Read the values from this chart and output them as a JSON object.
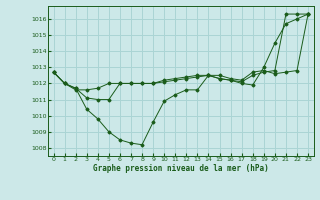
{
  "xlabel": "Graphe pression niveau de la mer (hPa)",
  "bg_color": "#cce8e8",
  "grid_color": "#aad4d4",
  "line_color": "#1a5c1a",
  "ylim": [
    1007.5,
    1016.8
  ],
  "xlim": [
    -0.5,
    23.5
  ],
  "yticks": [
    1008,
    1009,
    1010,
    1011,
    1012,
    1013,
    1014,
    1015,
    1016
  ],
  "xticks": [
    0,
    1,
    2,
    3,
    4,
    5,
    6,
    7,
    8,
    9,
    10,
    11,
    12,
    13,
    14,
    15,
    16,
    17,
    18,
    19,
    20,
    21,
    22,
    23
  ],
  "series": [
    [
      1012.7,
      1012.0,
      1011.7,
      1010.4,
      1009.8,
      1009.0,
      1008.5,
      1008.3,
      1008.2,
      1009.6,
      1010.9,
      1011.3,
      1011.6,
      1011.6,
      1012.5,
      1012.3,
      1012.2,
      1012.0,
      1011.9,
      1013.0,
      1014.5,
      1015.7,
      1016.0,
      1016.3
    ],
    [
      1012.7,
      1012.0,
      1011.7,
      1011.1,
      1011.0,
      1011.0,
      1012.0,
      1012.0,
      1012.0,
      1012.0,
      1012.1,
      1012.2,
      1012.3,
      1012.4,
      1012.5,
      1012.5,
      1012.3,
      1012.2,
      1012.7,
      1012.8,
      1012.6,
      1012.7,
      1012.8,
      1016.3
    ],
    [
      1012.7,
      1012.0,
      1011.6,
      1011.6,
      1011.7,
      1012.0,
      1012.0,
      1012.0,
      1012.0,
      1012.0,
      1012.2,
      1012.3,
      1012.4,
      1012.5,
      1012.5,
      1012.3,
      1012.2,
      1012.1,
      1012.5,
      1012.7,
      1012.8,
      1016.3,
      1016.3,
      1016.3
    ]
  ]
}
